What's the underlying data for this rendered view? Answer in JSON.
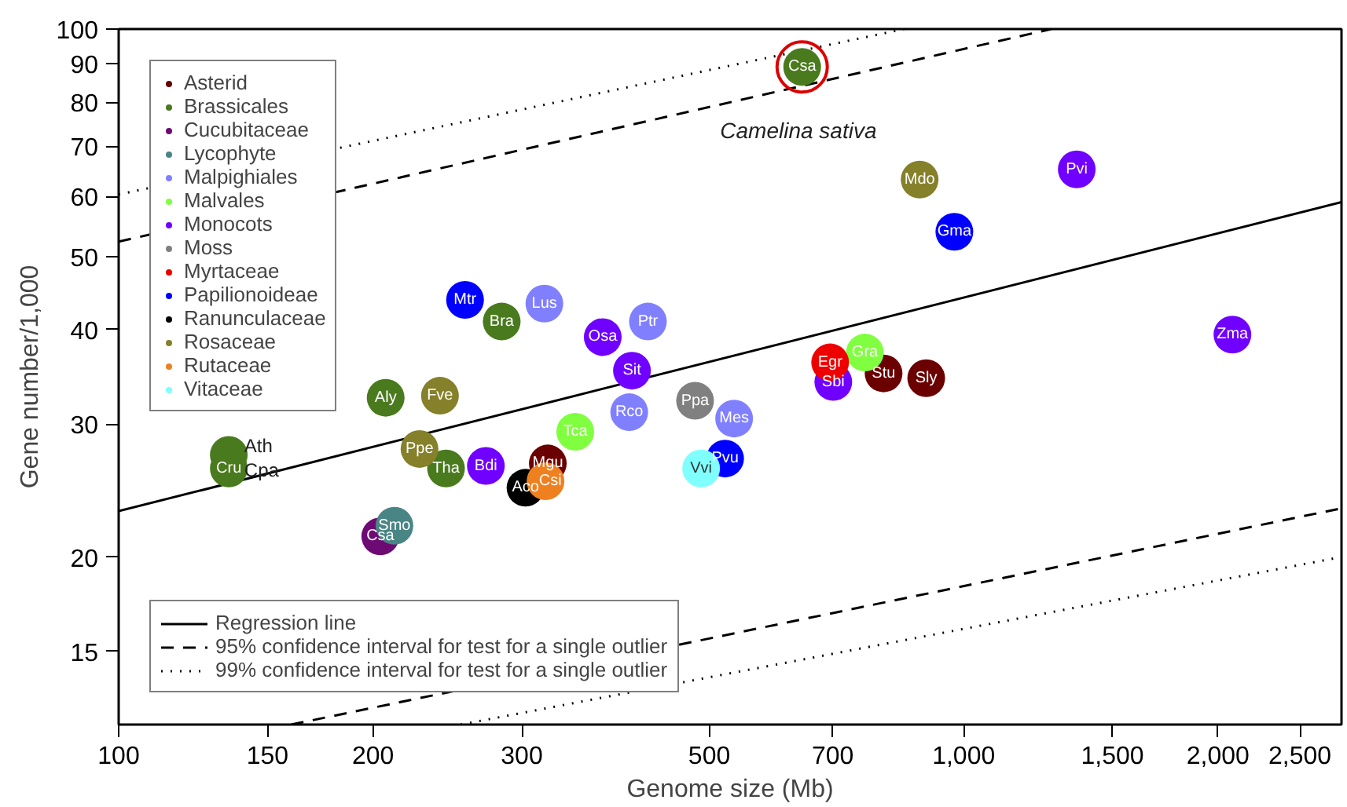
{
  "chart_data": {
    "type": "scatter",
    "xlabel": "Genome size (Mb)",
    "ylabel": "Gene number/1,000",
    "log": "xy",
    "marker": "circle",
    "legend": "left",
    "grid": false,
    "xlim": [
      100,
      2800
    ],
    "ylim": [
      12,
      100
    ],
    "xticks": [
      100,
      150,
      200,
      300,
      500,
      700,
      {
        "value": 1000,
        "label": "1,000"
      },
      {
        "value": 1500,
        "label": "1,500"
      },
      {
        "value": 2000,
        "label": "2,000"
      },
      {
        "value": 2500,
        "label": "2,500"
      }
    ],
    "yticks": [
      15,
      20,
      30,
      40,
      50,
      60,
      70,
      80,
      90,
      100
    ],
    "series": [
      {
        "name": "Asterid",
        "color": "#6b0000",
        "x": [
          804,
          903,
          322
        ],
        "values": [
          35.0,
          34.5,
          26.6
        ]
      },
      {
        "name": "Brassicales",
        "color": "#4a7a1e",
        "x": [
          644,
          284,
          207,
          244,
          135,
          135
        ],
        "values": [
          89.1,
          41.0,
          32.5,
          26.2,
          27.3,
          26.2
        ]
      },
      {
        "name": "Cucubitaceae",
        "color": "#6e0a73",
        "x": [
          204
        ],
        "values": [
          21.3
        ]
      },
      {
        "name": "Lycophyte",
        "color": "#4a8585",
        "x": [
          212
        ],
        "values": [
          22.0
        ]
      },
      {
        "name": "Malpighiales",
        "color": "#8080ff",
        "x": [
          319,
          423,
          402,
          535
        ],
        "values": [
          43.3,
          41.0,
          31.1,
          30.5
        ]
      },
      {
        "name": "Malvales",
        "color": "#80ff40",
        "x": [
          347,
          764
        ],
        "values": [
          29.3,
          37.3
        ]
      },
      {
        "name": "Monocots",
        "color": "#7000ff",
        "x": [
          1361,
          2080,
          701,
          374,
          405,
          272
        ],
        "values": [
          65.2,
          39.4,
          34.1,
          39.1,
          35.3,
          26.4
        ]
      },
      {
        "name": "Moss",
        "color": "#808080",
        "x": [
          481
        ],
        "values": [
          32.2
        ]
      },
      {
        "name": "Myrtaceae",
        "color": "#ee0000",
        "x": [
          695
        ],
        "values": [
          36.2
        ]
      },
      {
        "name": "Papilionoideae",
        "color": "#0000ff",
        "x": [
          257,
          975,
          522
        ],
        "values": [
          43.8,
          53.9,
          27.0
        ]
      },
      {
        "name": "Ranunculaceae",
        "color": "#000000",
        "x": [
          303
        ],
        "values": [
          24.7
        ]
      },
      {
        "name": "Rosaceae",
        "color": "#85802a",
        "x": [
          887,
          240,
          227
        ],
        "values": [
          63.2,
          32.7,
          27.8
        ]
      },
      {
        "name": "Rutaceae",
        "color": "#ee8020",
        "x": [
          320
        ],
        "values": [
          25.2
        ]
      },
      {
        "name": "Vitaceae",
        "color": "#80ffff",
        "x": [
          489
        ],
        "values": [
          26.2
        ]
      },
      {
        "name": "Regression line",
        "type": "line",
        "marker": "none",
        "line_style": "solid",
        "color": "#000000",
        "x": [
          100,
          2800
        ],
        "values": [
          23.0,
          59.0
        ]
      },
      {
        "name": "95% confidence interval for test for a single outlier",
        "type": "line",
        "marker": "none",
        "line_style": "dashed",
        "color": "#000000",
        "x": [
          100,
          1270
        ],
        "values": [
          52.3,
          100
        ]
      },
      {
        "type": "line",
        "marker": "none",
        "line_style": "dashed",
        "color": "#000000",
        "x": [
          160,
          2800
        ],
        "values": [
          12,
          23.2
        ]
      },
      {
        "name": "99% confidence interval for test for a single outlier",
        "type": "line",
        "marker": "none",
        "line_style": "dotted",
        "color": "#000000",
        "x": [
          100,
          850
        ],
        "values": [
          60.4,
          100
        ]
      },
      {
        "type": "line",
        "marker": "none",
        "line_style": "dotted",
        "color": "#000000",
        "x": [
          254,
          2800
        ],
        "values": [
          12,
          20.0
        ]
      }
    ],
    "annotations": [
      "Camelina sativa",
      "Ath",
      "Cpa",
      {
        "text": "Csa",
        "x": 644,
        "y": 89.1
      },
      {
        "text": "Stu",
        "x": 804,
        "y": 35.0
      },
      {
        "text": "Sly",
        "x": 903,
        "y": 34.5
      },
      {
        "text": "Mgu",
        "x": 322,
        "y": 26.6
      },
      {
        "text": "Bra",
        "x": 284,
        "y": 41.0
      },
      {
        "text": "Aly",
        "x": 207,
        "y": 32.5
      },
      {
        "text": "Tha",
        "x": 244,
        "y": 26.2
      },
      {
        "text": "Cru",
        "x": 135,
        "y": 26.2
      },
      {
        "text": "Csa",
        "x": 204,
        "y": 21.3
      },
      {
        "text": "Smo",
        "x": 212,
        "y": 22.0
      },
      {
        "text": "Lus",
        "x": 319,
        "y": 43.3
      },
      {
        "text": "Ptr",
        "x": 423,
        "y": 41.0
      },
      {
        "text": "Rco",
        "x": 402,
        "y": 31.1
      },
      {
        "text": "Mes",
        "x": 535,
        "y": 30.5
      },
      {
        "text": "Tca",
        "x": 347,
        "y": 29.3
      },
      {
        "text": "Gra",
        "x": 764,
        "y": 37.3
      },
      {
        "text": "Pvi",
        "x": 1361,
        "y": 65.2
      },
      {
        "text": "Zma",
        "x": 2080,
        "y": 39.4
      },
      {
        "text": "Sbi",
        "x": 701,
        "y": 34.1
      },
      {
        "text": "Osa",
        "x": 374,
        "y": 39.1
      },
      {
        "text": "Sit",
        "x": 405,
        "y": 35.3
      },
      {
        "text": "Bdi",
        "x": 272,
        "y": 26.4
      },
      {
        "text": "Ppa",
        "x": 481,
        "y": 32.2
      },
      {
        "text": "Egr",
        "x": 695,
        "y": 36.2
      },
      {
        "text": "Mtr",
        "x": 257,
        "y": 43.8
      },
      {
        "text": "Gma",
        "x": 975,
        "y": 53.9
      },
      {
        "text": "Pvu",
        "x": 522,
        "y": 27.0
      },
      {
        "text": "Aco",
        "x": 303,
        "y": 24.7
      },
      {
        "text": "Mdo",
        "x": 887,
        "y": 63.2
      },
      {
        "text": "Fve",
        "x": 240,
        "y": 32.7
      },
      {
        "text": "Ppe",
        "x": 227,
        "y": 27.8
      },
      {
        "text": "Csi",
        "x": 320,
        "y": 25.2
      },
      {
        "text": "Vvi",
        "x": 489,
        "y": 26.2
      }
    ]
  }
}
